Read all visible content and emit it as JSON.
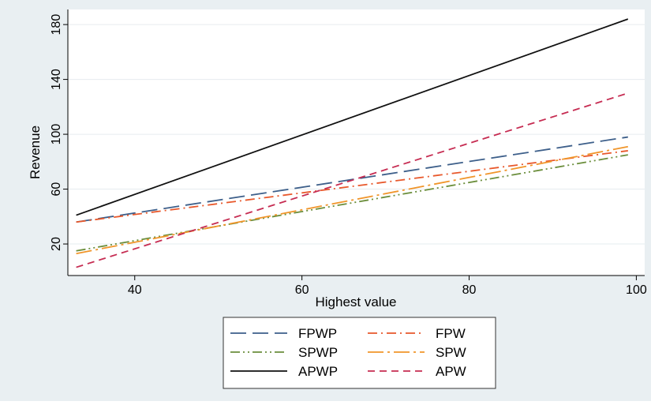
{
  "chart_data": {
    "type": "line",
    "title": "",
    "xlabel": "Highest value",
    "ylabel": "Revenue",
    "xlim": [
      32,
      101
    ],
    "ylim": [
      -3,
      191
    ],
    "xticks": [
      40,
      60,
      80,
      100
    ],
    "yticks": [
      20,
      60,
      100,
      140,
      180
    ],
    "grid": true,
    "legend_position": "bottom",
    "series": [
      {
        "name": "FPWP",
        "x": [
          33,
          99
        ],
        "y": [
          36,
          98
        ],
        "color": "#3d5f8a",
        "dash": "long-dash"
      },
      {
        "name": "FPW",
        "x": [
          33,
          99
        ],
        "y": [
          36,
          88
        ],
        "color": "#e8582b",
        "dash": "dash-dot"
      },
      {
        "name": "SPWP",
        "x": [
          33,
          99
        ],
        "y": [
          15,
          85
        ],
        "color": "#6b8e3c",
        "dash": "dash-dot-dot"
      },
      {
        "name": "SPW",
        "x": [
          33,
          99
        ],
        "y": [
          13,
          91
        ],
        "color": "#f0952a",
        "dash": "long-dash-dot"
      },
      {
        "name": "APWP",
        "x": [
          33,
          99
        ],
        "y": [
          41,
          184
        ],
        "color": "#111111",
        "dash": "solid"
      },
      {
        "name": "APW",
        "x": [
          33,
          99
        ],
        "y": [
          3,
          130
        ],
        "color": "#c62c52",
        "dash": "short-dash"
      }
    ]
  }
}
